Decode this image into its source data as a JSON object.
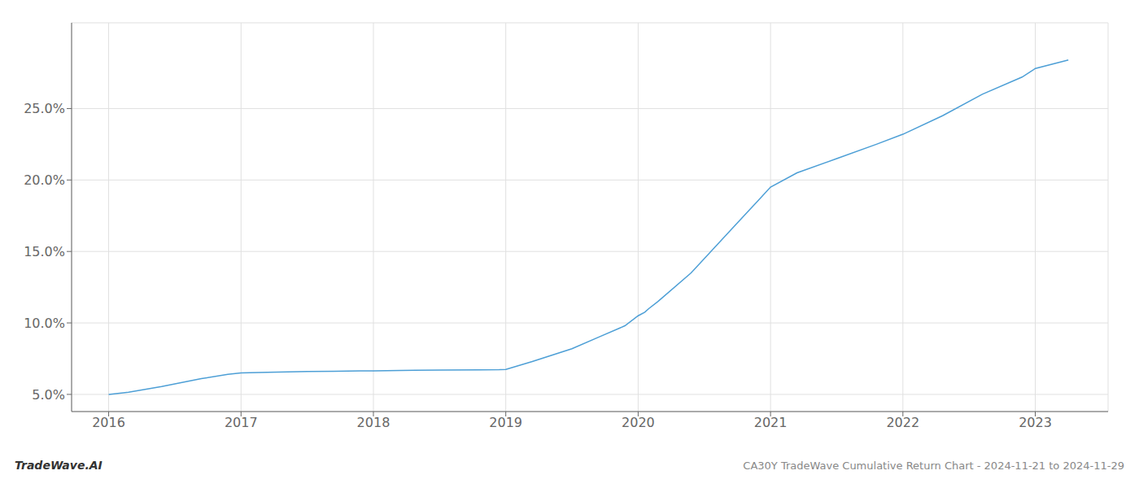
{
  "chart_data": {
    "type": "line",
    "title": "CA30Y TradeWave Cumulative Return Chart - 2024-11-21 to 2024-11-29",
    "annotations": [
      "TradeWave.AI"
    ],
    "color": "#4d9fd6",
    "x": [
      2016.0,
      2016.15,
      2016.4,
      2016.7,
      2016.9,
      2017.0,
      2017.2,
      2017.5,
      2017.7,
      2017.9,
      2018.0,
      2018.2,
      2018.5,
      2018.8,
      2018.95,
      2019.0,
      2019.2,
      2019.5,
      2019.7,
      2019.9,
      2020.0,
      2020.05,
      2020.08,
      2020.15,
      2020.4,
      2020.7,
      2020.9,
      2021.0,
      2021.2,
      2021.5,
      2021.8,
      2022.0,
      2022.3,
      2022.6,
      2022.9,
      2023.0,
      2023.25
    ],
    "values": [
      5.0,
      5.15,
      5.55,
      6.1,
      6.4,
      6.5,
      6.55,
      6.6,
      6.62,
      6.65,
      6.65,
      6.68,
      6.7,
      6.72,
      6.73,
      6.75,
      7.3,
      8.2,
      9.0,
      9.8,
      10.5,
      10.75,
      11.0,
      11.5,
      13.5,
      16.5,
      18.5,
      19.5,
      20.5,
      21.5,
      22.5,
      23.2,
      24.5,
      26.0,
      27.2,
      27.8,
      28.4
    ],
    "xlim": [
      2015.72,
      2023.55
    ],
    "ylim": [
      3.8,
      31.0
    ],
    "xticks": [
      2016,
      2017,
      2018,
      2019,
      2020,
      2021,
      2022,
      2023
    ],
    "yticks": [
      {
        "value": 5.0,
        "label": "5.0%"
      },
      {
        "value": 10.0,
        "label": "10.0%"
      },
      {
        "value": 15.0,
        "label": "15.0%"
      },
      {
        "value": 20.0,
        "label": "20.0%"
      },
      {
        "value": 25.0,
        "label": "25.0%"
      }
    ],
    "grid": true
  }
}
